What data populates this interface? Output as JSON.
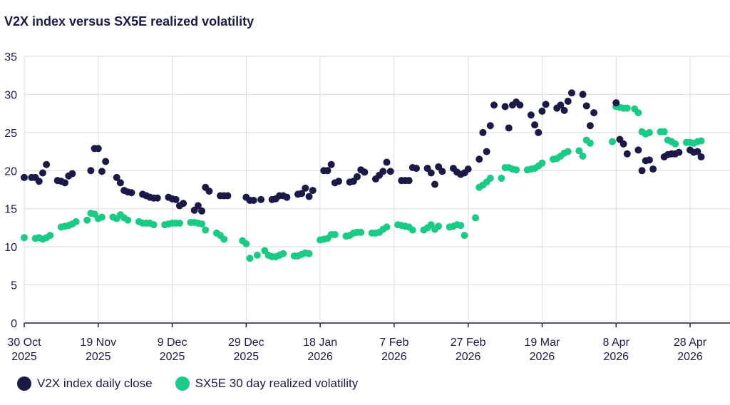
{
  "chart_data": {
    "type": "scatter",
    "title": "V2X index versus SX5E realized volatility",
    "ylim": [
      0,
      35
    ],
    "yticks": [
      0,
      5,
      10,
      15,
      20,
      25,
      30,
      35
    ],
    "xlim": [
      "2025-10-30",
      "2026-05-06"
    ],
    "xticks": [
      {
        "date": "2025-10-30",
        "line1": "30 Oct",
        "line2": "2025"
      },
      {
        "date": "2025-11-19",
        "line1": "19 Nov",
        "line2": "2025"
      },
      {
        "date": "2025-12-09",
        "line1": "9 Dec",
        "line2": "2025"
      },
      {
        "date": "2025-12-29",
        "line1": "29 Dec",
        "line2": "2025"
      },
      {
        "date": "2026-01-18",
        "line1": "18 Jan",
        "line2": "2026"
      },
      {
        "date": "2026-02-07",
        "line1": "7 Feb",
        "line2": "2026"
      },
      {
        "date": "2026-02-27",
        "line1": "27 Feb",
        "line2": "2026"
      },
      {
        "date": "2026-03-19",
        "line1": "19 Mar",
        "line2": "2026"
      },
      {
        "date": "2026-04-08",
        "line1": "8 Apr",
        "line2": "2026"
      },
      {
        "date": "2026-04-28",
        "line1": "28 Apr",
        "line2": "2026"
      }
    ],
    "grid": true,
    "legend_position": "bottom-left",
    "series": [
      {
        "name": "V2X index daily close",
        "color": "#1b1a46",
        "points": [
          [
            "2025-10-30",
            19.1
          ],
          [
            "2025-11-01",
            19.1
          ],
          [
            "2025-11-02",
            19.1
          ],
          [
            "2025-11-03",
            18.6
          ],
          [
            "2025-11-04",
            19.7
          ],
          [
            "2025-11-05",
            20.8
          ],
          [
            "2025-11-08",
            18.7
          ],
          [
            "2025-11-09",
            18.6
          ],
          [
            "2025-11-10",
            18.4
          ],
          [
            "2025-11-11",
            19.3
          ],
          [
            "2025-11-12",
            19.6
          ],
          [
            "2025-11-17",
            20.0
          ],
          [
            "2025-11-18",
            22.9
          ],
          [
            "2025-11-19",
            22.9
          ],
          [
            "2025-11-20",
            19.9
          ],
          [
            "2025-11-21",
            21.2
          ],
          [
            "2025-11-24",
            19.1
          ],
          [
            "2025-11-25",
            18.4
          ],
          [
            "2025-11-26",
            17.4
          ],
          [
            "2025-11-27",
            17.2
          ],
          [
            "2025-11-28",
            17.1
          ],
          [
            "2025-12-01",
            16.9
          ],
          [
            "2025-12-02",
            16.7
          ],
          [
            "2025-12-03",
            16.5
          ],
          [
            "2025-12-04",
            16.4
          ],
          [
            "2025-12-05",
            16.4
          ],
          [
            "2025-12-08",
            16.5
          ],
          [
            "2025-12-09",
            16.3
          ],
          [
            "2025-12-10",
            16.2
          ],
          [
            "2025-12-11",
            15.4
          ],
          [
            "2025-12-12",
            15.7
          ],
          [
            "2025-12-15",
            14.8
          ],
          [
            "2025-12-16",
            15.4
          ],
          [
            "2025-12-17",
            14.7
          ],
          [
            "2025-12-18",
            17.8
          ],
          [
            "2025-12-19",
            17.3
          ],
          [
            "2025-12-22",
            16.7
          ],
          [
            "2025-12-23",
            16.7
          ],
          [
            "2025-12-24",
            16.7
          ],
          [
            "2025-12-29",
            16.5
          ],
          [
            "2025-12-30",
            16.1
          ],
          [
            "2025-12-31",
            16.1
          ],
          [
            "2026-01-02",
            16.2
          ],
          [
            "2026-01-05",
            16.2
          ],
          [
            "2026-01-06",
            16.3
          ],
          [
            "2026-01-07",
            16.7
          ],
          [
            "2026-01-08",
            16.7
          ],
          [
            "2026-01-09",
            16.5
          ],
          [
            "2026-01-12",
            16.9
          ],
          [
            "2026-01-13",
            17.0
          ],
          [
            "2026-01-14",
            17.7
          ],
          [
            "2026-01-15",
            16.6
          ],
          [
            "2026-01-16",
            17.4
          ],
          [
            "2026-01-19",
            20.0
          ],
          [
            "2026-01-20",
            20.0
          ],
          [
            "2026-01-21",
            20.8
          ],
          [
            "2026-01-22",
            18.4
          ],
          [
            "2026-01-23",
            18.6
          ],
          [
            "2026-01-26",
            18.5
          ],
          [
            "2026-01-27",
            18.6
          ],
          [
            "2026-01-28",
            19.2
          ],
          [
            "2026-01-29",
            20.1
          ],
          [
            "2026-01-30",
            19.8
          ],
          [
            "2026-02-02",
            18.9
          ],
          [
            "2026-02-03",
            19.4
          ],
          [
            "2026-02-04",
            19.9
          ],
          [
            "2026-02-05",
            21.1
          ],
          [
            "2026-02-06",
            19.9
          ],
          [
            "2026-02-09",
            18.7
          ],
          [
            "2026-02-10",
            18.7
          ],
          [
            "2026-02-11",
            18.7
          ],
          [
            "2026-02-12",
            20.4
          ],
          [
            "2026-02-13",
            20.3
          ],
          [
            "2026-02-16",
            20.3
          ],
          [
            "2026-02-17",
            19.7
          ],
          [
            "2026-02-18",
            18.2
          ],
          [
            "2026-02-19",
            20.5
          ],
          [
            "2026-02-20",
            19.9
          ],
          [
            "2026-02-23",
            20.3
          ],
          [
            "2026-02-24",
            19.8
          ],
          [
            "2026-02-25",
            19.5
          ],
          [
            "2026-02-26",
            19.7
          ],
          [
            "2026-02-27",
            20.2
          ],
          [
            "2026-03-02",
            21.5
          ],
          [
            "2026-03-03",
            25.0
          ],
          [
            "2026-03-04",
            22.5
          ],
          [
            "2026-03-05",
            25.9
          ],
          [
            "2026-03-06",
            28.6
          ],
          [
            "2026-03-09",
            28.4
          ],
          [
            "2026-03-10",
            25.6
          ],
          [
            "2026-03-11",
            28.6
          ],
          [
            "2026-03-12",
            29.0
          ],
          [
            "2026-03-13",
            28.6
          ],
          [
            "2026-03-16",
            27.3
          ],
          [
            "2026-03-17",
            26.0
          ],
          [
            "2026-03-18",
            25.0
          ],
          [
            "2026-03-19",
            27.8
          ],
          [
            "2026-03-20",
            28.7
          ],
          [
            "2026-03-23",
            28.2
          ],
          [
            "2026-03-24",
            28.6
          ],
          [
            "2026-03-25",
            27.9
          ],
          [
            "2026-03-26",
            29.1
          ],
          [
            "2026-03-27",
            30.2
          ],
          [
            "2026-03-30",
            30.0
          ],
          [
            "2026-03-31",
            28.5
          ],
          [
            "2026-04-01",
            25.9
          ],
          [
            "2026-04-02",
            27.6
          ],
          [
            "2026-04-08",
            28.9
          ],
          [
            "2026-04-09",
            24.1
          ],
          [
            "2026-04-10",
            23.5
          ],
          [
            "2026-04-11",
            22.2
          ],
          [
            "2026-04-14",
            22.7
          ],
          [
            "2026-04-15",
            20.0
          ],
          [
            "2026-04-16",
            21.3
          ],
          [
            "2026-04-17",
            21.4
          ],
          [
            "2026-04-18",
            20.2
          ],
          [
            "2026-04-21",
            21.8
          ],
          [
            "2026-04-22",
            22.1
          ],
          [
            "2026-04-23",
            22.2
          ],
          [
            "2026-04-24",
            22.2
          ],
          [
            "2026-04-25",
            22.4
          ],
          [
            "2026-04-28",
            22.7
          ],
          [
            "2026-04-29",
            22.4
          ],
          [
            "2026-04-30",
            22.5
          ],
          [
            "2026-05-01",
            21.8
          ]
        ]
      },
      {
        "name": "SX5E 30 day realized volatility",
        "color": "#19cb84",
        "points": [
          [
            "2025-10-30",
            11.2
          ],
          [
            "2025-11-02",
            11.1
          ],
          [
            "2025-11-03",
            11.2
          ],
          [
            "2025-11-04",
            11.0
          ],
          [
            "2025-11-05",
            11.2
          ],
          [
            "2025-11-06",
            11.5
          ],
          [
            "2025-11-09",
            12.6
          ],
          [
            "2025-11-10",
            12.7
          ],
          [
            "2025-11-11",
            12.8
          ],
          [
            "2025-11-12",
            13.0
          ],
          [
            "2025-11-13",
            13.3
          ],
          [
            "2025-11-16",
            13.5
          ],
          [
            "2025-11-17",
            14.4
          ],
          [
            "2025-11-18",
            14.3
          ],
          [
            "2025-11-19",
            13.7
          ],
          [
            "2025-11-20",
            13.9
          ],
          [
            "2025-11-23",
            13.9
          ],
          [
            "2025-11-24",
            13.7
          ],
          [
            "2025-11-25",
            14.2
          ],
          [
            "2025-11-26",
            13.8
          ],
          [
            "2025-11-27",
            13.5
          ],
          [
            "2025-11-30",
            13.3
          ],
          [
            "2025-12-01",
            13.1
          ],
          [
            "2025-12-02",
            13.1
          ],
          [
            "2025-12-03",
            13.1
          ],
          [
            "2025-12-04",
            12.9
          ],
          [
            "2025-12-07",
            12.9
          ],
          [
            "2025-12-08",
            13.0
          ],
          [
            "2025-12-09",
            13.1
          ],
          [
            "2025-12-10",
            13.1
          ],
          [
            "2025-12-11",
            13.1
          ],
          [
            "2025-12-14",
            13.2
          ],
          [
            "2025-12-15",
            13.2
          ],
          [
            "2025-12-16",
            13.1
          ],
          [
            "2025-12-17",
            13.0
          ],
          [
            "2025-12-18",
            12.2
          ],
          [
            "2025-12-21",
            11.8
          ],
          [
            "2025-12-22",
            11.5
          ],
          [
            "2025-12-23",
            11.0
          ],
          [
            "2025-12-28",
            10.8
          ],
          [
            "2025-12-29",
            10.4
          ],
          [
            "2025-12-30",
            8.5
          ],
          [
            "2026-01-01",
            8.9
          ],
          [
            "2026-01-03",
            9.5
          ],
          [
            "2026-01-04",
            8.9
          ],
          [
            "2026-01-05",
            8.7
          ],
          [
            "2026-01-06",
            8.7
          ],
          [
            "2026-01-07",
            8.9
          ],
          [
            "2026-01-08",
            9.1
          ],
          [
            "2026-01-11",
            8.8
          ],
          [
            "2026-01-12",
            8.8
          ],
          [
            "2026-01-13",
            9.0
          ],
          [
            "2026-01-14",
            9.2
          ],
          [
            "2026-01-15",
            9.1
          ],
          [
            "2026-01-18",
            10.9
          ],
          [
            "2026-01-19",
            11.0
          ],
          [
            "2026-01-20",
            11.1
          ],
          [
            "2026-01-21",
            11.6
          ],
          [
            "2026-01-22",
            11.6
          ],
          [
            "2026-01-25",
            11.4
          ],
          [
            "2026-01-26",
            11.5
          ],
          [
            "2026-01-27",
            11.8
          ],
          [
            "2026-01-28",
            11.9
          ],
          [
            "2026-01-29",
            11.9
          ],
          [
            "2026-02-01",
            11.8
          ],
          [
            "2026-02-02",
            11.8
          ],
          [
            "2026-02-03",
            11.9
          ],
          [
            "2026-02-04",
            12.3
          ],
          [
            "2026-02-05",
            12.6
          ],
          [
            "2026-02-08",
            12.9
          ],
          [
            "2026-02-09",
            12.8
          ],
          [
            "2026-02-10",
            12.7
          ],
          [
            "2026-02-11",
            12.6
          ],
          [
            "2026-02-12",
            12.2
          ],
          [
            "2026-02-15",
            12.2
          ],
          [
            "2026-02-16",
            12.5
          ],
          [
            "2026-02-17",
            12.9
          ],
          [
            "2026-02-18",
            12.3
          ],
          [
            "2026-02-19",
            12.7
          ],
          [
            "2026-02-22",
            12.6
          ],
          [
            "2026-02-23",
            12.7
          ],
          [
            "2026-02-24",
            12.9
          ],
          [
            "2026-02-25",
            12.8
          ],
          [
            "2026-02-26",
            11.5
          ],
          [
            "2026-03-01",
            13.8
          ],
          [
            "2026-03-02",
            17.8
          ],
          [
            "2026-03-03",
            18.1
          ],
          [
            "2026-03-04",
            18.5
          ],
          [
            "2026-03-05",
            19.0
          ],
          [
            "2026-03-08",
            19.0
          ],
          [
            "2026-03-09",
            20.4
          ],
          [
            "2026-03-10",
            20.4
          ],
          [
            "2026-03-11",
            20.2
          ],
          [
            "2026-03-12",
            20.1
          ],
          [
            "2026-03-15",
            20.1
          ],
          [
            "2026-03-16",
            20.2
          ],
          [
            "2026-03-17",
            20.3
          ],
          [
            "2026-03-18",
            20.6
          ],
          [
            "2026-03-19",
            21.0
          ],
          [
            "2026-03-22",
            21.5
          ],
          [
            "2026-03-23",
            21.6
          ],
          [
            "2026-03-24",
            21.9
          ],
          [
            "2026-03-25",
            22.3
          ],
          [
            "2026-03-26",
            22.5
          ],
          [
            "2026-03-29",
            22.6
          ],
          [
            "2026-03-30",
            21.9
          ],
          [
            "2026-03-31",
            24.0
          ],
          [
            "2026-04-01",
            23.6
          ],
          [
            "2026-04-07",
            23.8
          ],
          [
            "2026-04-08",
            28.4
          ],
          [
            "2026-04-09",
            28.3
          ],
          [
            "2026-04-10",
            28.2
          ],
          [
            "2026-04-11",
            28.2
          ],
          [
            "2026-04-13",
            28.1
          ],
          [
            "2026-04-14",
            27.6
          ],
          [
            "2026-04-15",
            25.1
          ],
          [
            "2026-04-16",
            24.8
          ],
          [
            "2026-04-17",
            25.0
          ],
          [
            "2026-04-20",
            25.1
          ],
          [
            "2026-04-21",
            25.1
          ],
          [
            "2026-04-22",
            24.0
          ],
          [
            "2026-04-23",
            23.8
          ],
          [
            "2026-04-24",
            23.5
          ],
          [
            "2026-04-27",
            23.7
          ],
          [
            "2026-04-28",
            23.7
          ],
          [
            "2026-04-29",
            23.6
          ],
          [
            "2026-04-30",
            23.8
          ],
          [
            "2026-05-01",
            23.9
          ]
        ]
      }
    ]
  }
}
